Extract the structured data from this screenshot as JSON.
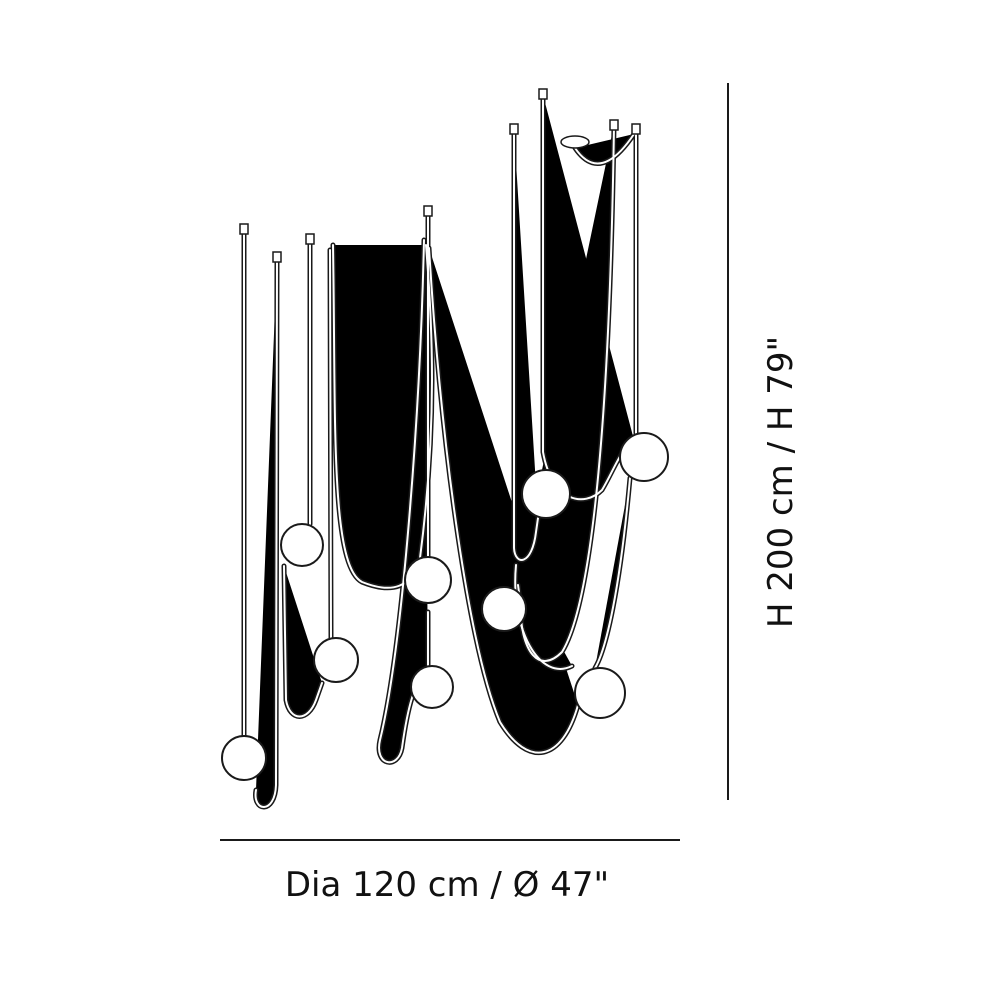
{
  "dimensions": {
    "diameter": "Dia 120 cm / Ø 47\"",
    "height": "H 200 cm / H 79\""
  }
}
